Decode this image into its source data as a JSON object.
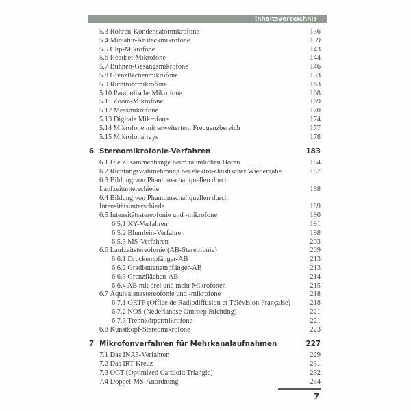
{
  "header": {
    "label": "Inhaltsverzeichnis",
    "tab_mark": "|",
    "bar_color": "#919992"
  },
  "toc": {
    "rows": [
      {
        "kind": "entry",
        "level": 1,
        "text": "5.3 Röhren-Kondensatormikrofone",
        "page": "136"
      },
      {
        "kind": "entry",
        "level": 1,
        "text": "5.4 Miniatur-Ansteckmikrofone",
        "page": "139"
      },
      {
        "kind": "entry",
        "level": 1,
        "text": "5.5 Clip-Mikrofone",
        "page": "143"
      },
      {
        "kind": "entry",
        "level": 1,
        "text": "5.6 Headset-Mikrofone",
        "page": "144"
      },
      {
        "kind": "entry",
        "level": 1,
        "text": "5.7 Bühnen-Gesangsmikrofone",
        "page": "146"
      },
      {
        "kind": "entry",
        "level": 1,
        "text": "5.8 Grenzflächenmikrofone",
        "page": "153"
      },
      {
        "kind": "entry",
        "level": 1,
        "text": "5.9 Richtrohrmikrofone",
        "page": "163"
      },
      {
        "kind": "entry",
        "level": 1,
        "text": "5.10 Parabolische Mikrofone",
        "page": "168"
      },
      {
        "kind": "entry",
        "level": 1,
        "text": "5.11 Zoom-Mikrofone",
        "page": "169"
      },
      {
        "kind": "entry",
        "level": 1,
        "text": "5.12 Messmikrofone",
        "page": "170"
      },
      {
        "kind": "entry",
        "level": 1,
        "text": "5.13 Digitale Mikrofone",
        "page": "174"
      },
      {
        "kind": "entry",
        "level": 1,
        "text": "5.14 Mikrofone mit erweitertem Frequenzbereich",
        "page": "177"
      },
      {
        "kind": "entry",
        "level": 1,
        "text": "5.15 Mikrofonarrays",
        "page": "178"
      },
      {
        "kind": "chapter",
        "number": "6",
        "title": "Stereomikrofonie-Verfahren",
        "page": "183"
      },
      {
        "kind": "entry",
        "level": 1,
        "text": "6.1 Die Zusammenhänge beim räumlichen Hören",
        "page": "184"
      },
      {
        "kind": "entry",
        "level": 1,
        "text": "6.2 Richtungswahrnehmung bei elektro-akustischer Wiedergabe",
        "page": "187"
      },
      {
        "kind": "entry",
        "level": 1,
        "text": "6.3 Bildung von Phantomschallquellen durch",
        "page": ""
      },
      {
        "kind": "cont",
        "level": 1,
        "text": "Laufzeitunterschiede",
        "page": "188"
      },
      {
        "kind": "entry",
        "level": 1,
        "text": "6.4 Bildung von Phantomschallquellen durch",
        "page": ""
      },
      {
        "kind": "cont",
        "level": 1,
        "text": "Intensitätsunterschiede",
        "page": "189"
      },
      {
        "kind": "entry",
        "level": 1,
        "text": "6.5 Intensitätsstereofonie und -mikrofone",
        "page": "190"
      },
      {
        "kind": "entry",
        "level": 2,
        "text": "6.5.1 XY-Verfahren",
        "page": "191"
      },
      {
        "kind": "entry",
        "level": 2,
        "text": "6.5.2 Blumlein-Verfahren",
        "page": "198"
      },
      {
        "kind": "entry",
        "level": 2,
        "text": "6.5.3 MS-Verfahren",
        "page": "203"
      },
      {
        "kind": "entry",
        "level": 1,
        "text": "6.6 Laufzeitstereofonie (AB-Stereofonie)",
        "page": "209"
      },
      {
        "kind": "entry",
        "level": 2,
        "text": "6.6.1 Druckempfänger-AB",
        "page": "213"
      },
      {
        "kind": "entry",
        "level": 2,
        "text": "6.6.2 Gradientenempfänger-AB",
        "page": "213"
      },
      {
        "kind": "entry",
        "level": 2,
        "text": "6.6.3 Grenzflächen-AB",
        "page": "214"
      },
      {
        "kind": "entry",
        "level": 2,
        "text": "6.6.4 AB mit drei und mehr Mikrofonen",
        "page": "215"
      },
      {
        "kind": "entry",
        "level": 1,
        "text": "6.7 Äquivalenzstereofonie und -mikrofone",
        "page": "218"
      },
      {
        "kind": "entry",
        "level": 2,
        "text": "6.7.1 ORTF (Office de Radiodiffusion et Télévision Française)",
        "page": "218"
      },
      {
        "kind": "entry",
        "level": 2,
        "text": "6.7.2 NOS (Nederlandse Omroep Stichting)",
        "page": "221"
      },
      {
        "kind": "entry",
        "level": 2,
        "text": "6.7.3 Trennkörpermikrofone",
        "page": "221"
      },
      {
        "kind": "entry",
        "level": 1,
        "text": "6.8 Kunstkopf-Stereomikrofone",
        "page": "223"
      },
      {
        "kind": "chapter",
        "number": "7",
        "title": "Mikrofonverfahren für Mehrkanalaufnahmen",
        "page": "227"
      },
      {
        "kind": "entry",
        "level": 1,
        "text": "7.1 Das INA5-Verfahren",
        "page": "229"
      },
      {
        "kind": "entry",
        "level": 1,
        "text": "7.2 Das IRT-Kreuz",
        "page": "231"
      },
      {
        "kind": "entry",
        "level": 1,
        "text": "7.3 OCT (Optimized Cardioid Triangle)",
        "page": "232"
      },
      {
        "kind": "entry",
        "level": 1,
        "text": "7.4 Doppel-MS-Anordnung",
        "page": "234"
      }
    ]
  },
  "footer": {
    "page_number": "7"
  }
}
